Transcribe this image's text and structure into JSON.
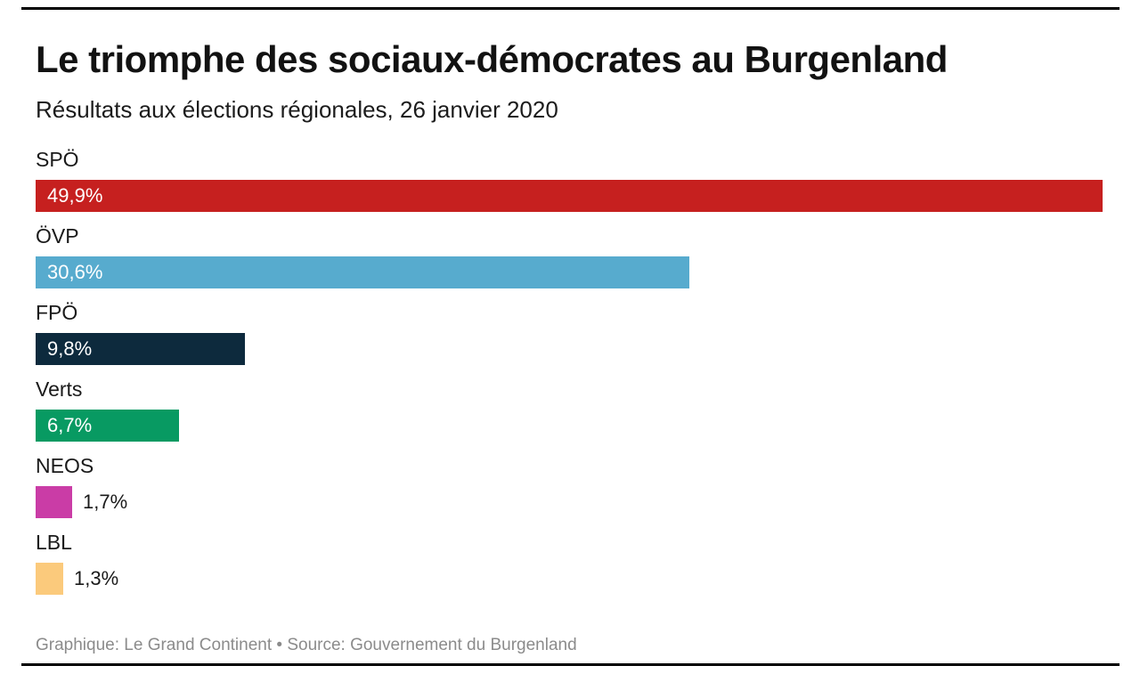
{
  "header": {
    "title": "Le triomphe des sociaux-démocrates au Burgenland",
    "subtitle": "Résultats aux élections régionales, 26 janvier 2020"
  },
  "chart_data": {
    "type": "bar",
    "orientation": "horizontal",
    "title": "Le triomphe des sociaux-démocrates au Burgenland",
    "subtitle": "Résultats aux élections régionales, 26 janvier 2020",
    "categories": [
      "SPÖ",
      "ÖVP",
      "FPÖ",
      "Verts",
      "NEOS",
      "LBL"
    ],
    "values": [
      49.9,
      30.6,
      9.8,
      6.7,
      1.7,
      1.3
    ],
    "value_labels": [
      "49,9%",
      "30,6%",
      "9,8%",
      "6,7%",
      "1,7%",
      "1,3%"
    ],
    "bar_colors": [
      "#c6201f",
      "#57abce",
      "#0d2a3d",
      "#089a62",
      "#ca3ca6",
      "#fbca7c"
    ],
    "xlabel": "",
    "ylabel": "",
    "xlim": [
      0,
      50
    ],
    "grid": false,
    "legend": "none",
    "value_label_position": "inside for bars >= 6.7%, outside right for smaller bars"
  },
  "footer": {
    "caption": "Graphique: Le Grand Continent • Source: Gouvernement du Burgenland"
  },
  "colors": {
    "background": "#ffffff",
    "title_text": "#121212",
    "body_text": "#1a1a1a",
    "caption_text": "#8b8b8b",
    "value_inside_text": "#ffffff",
    "rule": "#000000"
  }
}
